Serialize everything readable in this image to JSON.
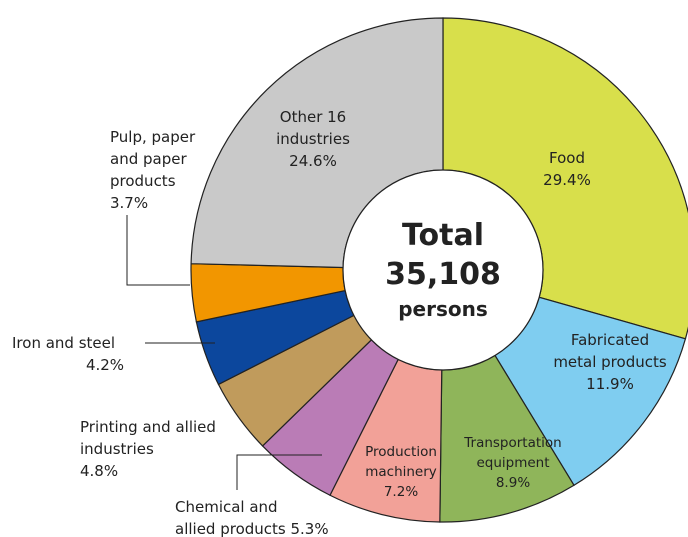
{
  "chart_data": {
    "type": "donut",
    "categories": [
      "Food",
      "Fabricated metal products",
      "Transportation equipment",
      "Production machinery",
      "Chemical and allied products",
      "Printing and allied industries",
      "Iron and steel",
      "Pulp, paper and paper products",
      "Other 16 industries"
    ],
    "values": [
      29.4,
      11.9,
      8.9,
      7.2,
      5.3,
      4.8,
      4.2,
      3.7,
      24.6
    ],
    "value_labels": [
      "29.4%",
      "11.9%",
      "8.9%",
      "7.2%",
      "5.3%",
      "4.8%",
      "4.2%",
      "3.7%",
      "24.6%"
    ],
    "colors": [
      "#d8df4b",
      "#7fcdf0",
      "#8fb55a",
      "#f2a198",
      "#ba7cb6",
      "#c09b5c",
      "#0c479d",
      "#f29600",
      "#c9c9c9"
    ],
    "center": {
      "title": "Total",
      "total": {
        "value": 35108,
        "label": "35,108"
      },
      "unit": "persons"
    }
  }
}
